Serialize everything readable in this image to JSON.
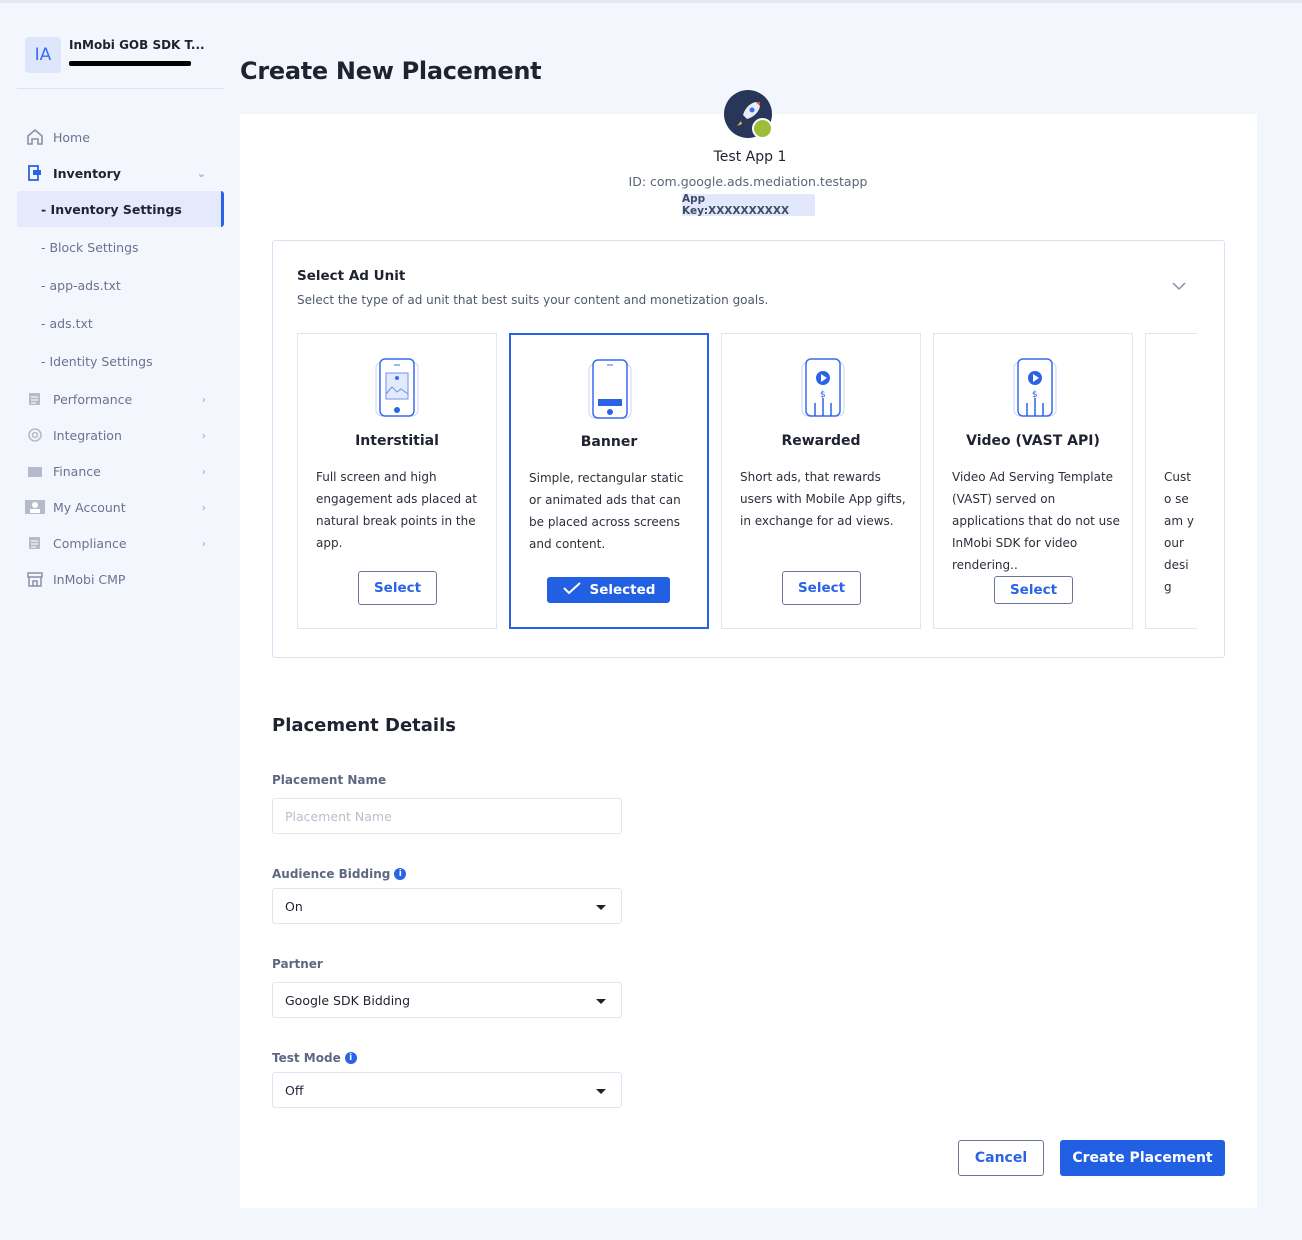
{
  "sidebar": {
    "account": {
      "initials": "IA",
      "name": "InMobi GOB SDK T..."
    },
    "items": [
      {
        "label": "Home",
        "icon": "home-icon"
      },
      {
        "label": "Inventory",
        "icon": "inventory-icon",
        "expanded": true,
        "children": [
          "- Inventory Settings",
          "- Block Settings",
          "- app-ads.txt",
          "- ads.txt",
          "- Identity Settings"
        ],
        "active_child": 0
      },
      {
        "label": "Performance",
        "icon": "report-icon"
      },
      {
        "label": "Integration",
        "icon": "target-icon"
      },
      {
        "label": "Finance",
        "icon": "wallet-icon"
      },
      {
        "label": "My Account",
        "icon": "user-icon"
      },
      {
        "label": "Compliance",
        "icon": "document-icon"
      },
      {
        "label": "InMobi CMP",
        "icon": "store-icon"
      }
    ]
  },
  "page": {
    "title": "Create New Placement"
  },
  "app": {
    "name": "Test App 1",
    "id": "ID: com.google.ads.mediation.testapp",
    "app_key": "App Key:XXXXXXXXXX",
    "platform": "android"
  },
  "ad_unit": {
    "title": "Select Ad Unit",
    "subtitle": "Select the type of ad unit that best suits your content and monetization goals.",
    "units": [
      {
        "name": "Interstitial",
        "description": "Full screen and high engagement ads placed at natural break points in the app.",
        "button": "Select",
        "selected": false
      },
      {
        "name": "Banner",
        "description": "Simple, rectangular static or animated ads that can be placed across screens and content.",
        "button": "Selected",
        "selected": true
      },
      {
        "name": "Rewarded",
        "description": "Short ads, that rewards users with Mobile App gifts, in exchange for ad views.",
        "button": "Select",
        "selected": false
      },
      {
        "name": "Video (VAST API)",
        "description": "Video Ad Serving Template (VAST) served on applications that do not use InMobi SDK for video rendering..",
        "button": "Select",
        "selected": false
      },
      {
        "name": "",
        "description": "Custo seam your desig",
        "button": "",
        "selected": false
      }
    ]
  },
  "details": {
    "title": "Placement Details",
    "placement_name": {
      "label": "Placement Name",
      "placeholder": "Placement Name",
      "value": ""
    },
    "audience_bidding": {
      "label": "Audience Bidding",
      "value": "On"
    },
    "partner": {
      "label": "Partner",
      "value": "Google SDK Bidding"
    },
    "test_mode": {
      "label": "Test Mode",
      "value": "Off"
    }
  },
  "actions": {
    "cancel": "Cancel",
    "create": "Create Placement"
  },
  "colors": {
    "accent": "#2160e2",
    "background": "#f3f6fd"
  }
}
